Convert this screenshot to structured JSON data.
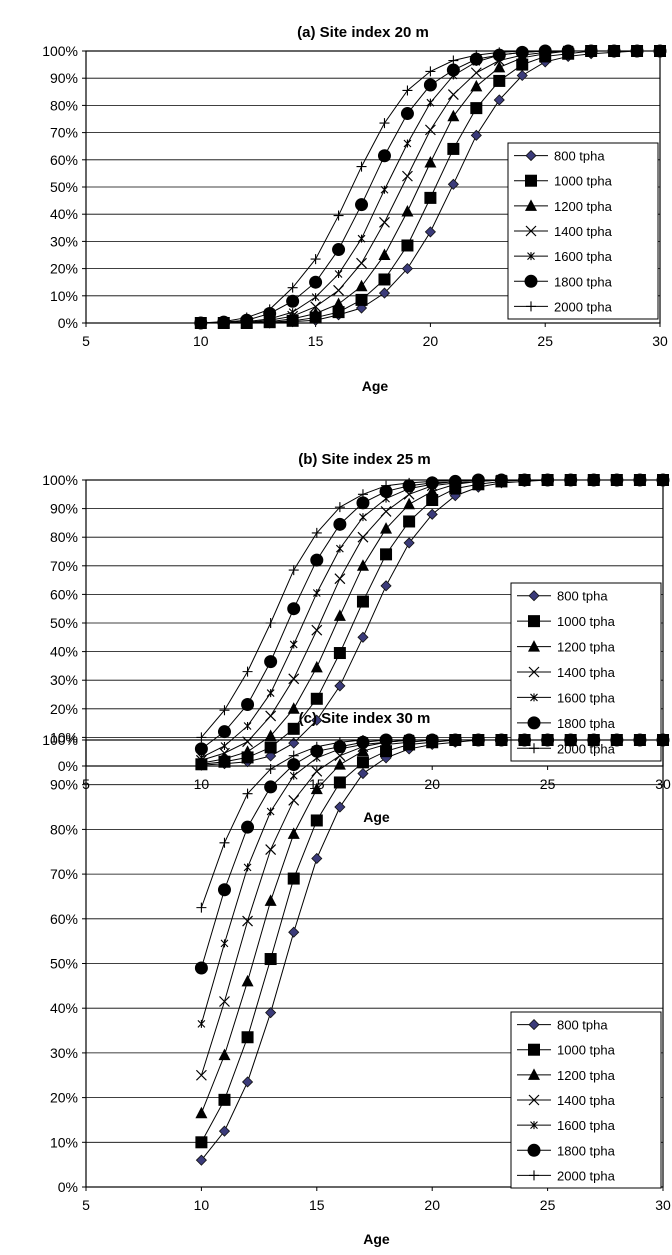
{
  "chart_data": [
    {
      "type": "line",
      "title": "(a) Site index 20 m",
      "xlabel": "Age",
      "ylabel": "",
      "xlim": [
        5,
        30
      ],
      "ylim": [
        0,
        100
      ],
      "x_ticks": [
        "5",
        "10",
        "15",
        "20",
        "25",
        "30"
      ],
      "y_ticks": [
        "0%",
        "10%",
        "20%",
        "30%",
        "40%",
        "50%",
        "60%",
        "70%",
        "80%",
        "90%",
        "100%"
      ],
      "grid": "horizontal",
      "legend_position": "right",
      "x": [
        10,
        11,
        12,
        13,
        14,
        15,
        16,
        17,
        18,
        19,
        20,
        21,
        22,
        23,
        24,
        25,
        26,
        27,
        28,
        29,
        30
      ],
      "series": [
        {
          "name": "800 tpha",
          "marker": "diamond",
          "values": [
            0,
            0,
            0,
            0,
            0.5,
            1,
            3,
            5.5,
            11,
            20,
            33.5,
            51,
            69,
            82,
            91,
            96,
            98,
            99,
            99.5,
            100,
            100
          ]
        },
        {
          "name": "1000 tpha",
          "marker": "square",
          "values": [
            0,
            0,
            0,
            0.3,
            0.8,
            2,
            4,
            8.5,
            16,
            28.5,
            46,
            64,
            79,
            89,
            95,
            98,
            99,
            100,
            100,
            100,
            100
          ]
        },
        {
          "name": "1200 tpha",
          "marker": "triangle",
          "values": [
            0,
            0,
            0.2,
            0.5,
            1.5,
            3.5,
            7,
            13.5,
            25,
            41,
            59,
            76,
            87,
            94,
            97.5,
            99,
            100,
            100,
            100,
            100,
            100
          ]
        },
        {
          "name": "1400 tpha",
          "marker": "x",
          "values": [
            0,
            0,
            0.3,
            1,
            2.5,
            6,
            12,
            22,
            37,
            54,
            71,
            84,
            92,
            96.5,
            98.5,
            99.5,
            100,
            100,
            100,
            100,
            100
          ]
        },
        {
          "name": "1600 tpha",
          "marker": "star",
          "values": [
            0,
            0.2,
            0.5,
            1.5,
            4,
            9.5,
            18,
            31,
            49,
            66,
            81,
            91,
            96,
            98.5,
            99.5,
            100,
            100,
            100,
            100,
            100,
            100
          ]
        },
        {
          "name": "1800 tpha",
          "marker": "circle",
          "values": [
            0,
            0.3,
            1,
            3.5,
            8,
            15,
            27,
            43.5,
            61.5,
            77,
            87.5,
            93,
            97,
            98.5,
            99.5,
            100,
            100,
            100,
            100,
            100,
            100
          ]
        },
        {
          "name": "2000 tpha",
          "marker": "plus",
          "values": [
            0,
            0.5,
            2,
            5,
            13,
            23.5,
            39.5,
            57.5,
            73.5,
            85.5,
            92.5,
            96.5,
            98.5,
            99.5,
            100,
            100,
            100,
            100,
            100,
            100,
            100
          ]
        }
      ]
    },
    {
      "type": "line",
      "title": "(b) Site index 25 m",
      "xlabel": "Age",
      "ylabel": "",
      "xlim": [
        5,
        30
      ],
      "ylim": [
        0,
        100
      ],
      "x_ticks": [
        "5",
        "10",
        "15",
        "20",
        "25",
        "30"
      ],
      "y_ticks": [
        "0%",
        "10%",
        "20%",
        "30%",
        "40%",
        "50%",
        "60%",
        "70%",
        "80%",
        "90%",
        "100%"
      ],
      "grid": "horizontal",
      "legend_position": "right",
      "x": [
        10,
        11,
        12,
        13,
        14,
        15,
        16,
        17,
        18,
        19,
        20,
        21,
        22,
        23,
        24,
        25,
        26,
        27,
        28,
        29,
        30
      ],
      "series": [
        {
          "name": "800 tpha",
          "marker": "diamond",
          "values": [
            0.3,
            0.8,
            1.5,
            3.5,
            8,
            16,
            28,
            45,
            63,
            78,
            88,
            94.5,
            97.5,
            99,
            99.5,
            100,
            100,
            100,
            100,
            100,
            100
          ]
        },
        {
          "name": "1000 tpha",
          "marker": "square",
          "values": [
            0.6,
            1.5,
            3,
            6.5,
            13,
            23.5,
            39.5,
            57.5,
            74,
            85.5,
            93,
            97,
            98.5,
            99.5,
            100,
            100,
            100,
            100,
            100,
            100,
            100
          ]
        },
        {
          "name": "1200 tpha",
          "marker": "triangle",
          "values": [
            1,
            2.5,
            5,
            10.5,
            20,
            34.5,
            52.5,
            70,
            83,
            91.5,
            96,
            98.5,
            99.5,
            100,
            100,
            100,
            100,
            100,
            100,
            100,
            100
          ]
        },
        {
          "name": "1400 tpha",
          "marker": "x",
          "values": [
            2,
            4.5,
            8.5,
            17.5,
            30.5,
            47.5,
            65.5,
            80,
            89,
            95,
            98,
            99,
            99.5,
            100,
            100,
            100,
            100,
            100,
            100,
            100,
            100
          ]
        },
        {
          "name": "1600 tpha",
          "marker": "star",
          "values": [
            3,
            7,
            14,
            25.5,
            42.5,
            60.5,
            76,
            87,
            93.5,
            97,
            98.5,
            99.5,
            100,
            100,
            100,
            100,
            100,
            100,
            100,
            100,
            100
          ]
        },
        {
          "name": "1800 tpha",
          "marker": "circle",
          "values": [
            6,
            12,
            21.5,
            36.5,
            55,
            72,
            84.5,
            92,
            96,
            98,
            99,
            99.5,
            100,
            100,
            100,
            100,
            100,
            100,
            100,
            100,
            100
          ]
        },
        {
          "name": "2000 tpha",
          "marker": "plus",
          "values": [
            10,
            19.5,
            33,
            50,
            68.5,
            81.5,
            90.5,
            95,
            98,
            99,
            99.5,
            100,
            100,
            100,
            100,
            100,
            100,
            100,
            100,
            100,
            100
          ]
        }
      ]
    },
    {
      "type": "line",
      "title": "(c) Site index 30 m",
      "xlabel": "Age",
      "ylabel": "",
      "xlim": [
        5,
        30
      ],
      "ylim": [
        0,
        100
      ],
      "x_ticks": [
        "5",
        "10",
        "15",
        "20",
        "25",
        "30"
      ],
      "y_ticks": [
        "0%",
        "10%",
        "20%",
        "30%",
        "40%",
        "50%",
        "60%",
        "70%",
        "80%",
        "90%",
        "100%"
      ],
      "grid": "horizontal",
      "legend_position": "right",
      "x": [
        10,
        11,
        12,
        13,
        14,
        15,
        16,
        17,
        18,
        19,
        20,
        21,
        22,
        23,
        24,
        25,
        26,
        27,
        28,
        29,
        30
      ],
      "series": [
        {
          "name": "800 tpha",
          "marker": "diamond",
          "values": [
            6,
            12.5,
            23.5,
            39,
            57,
            73.5,
            85,
            92.5,
            96,
            98,
            99,
            99.5,
            100,
            100,
            100,
            100,
            100,
            100,
            100,
            100,
            100
          ]
        },
        {
          "name": "1000 tpha",
          "marker": "square",
          "values": [
            10,
            19.5,
            33.5,
            51,
            69,
            82,
            90.5,
            95,
            97.5,
            99,
            99.5,
            100,
            100,
            100,
            100,
            100,
            100,
            100,
            100,
            100,
            100
          ]
        },
        {
          "name": "1200 tpha",
          "marker": "triangle",
          "values": [
            16.5,
            29.5,
            46,
            64,
            79,
            89,
            94.5,
            97.5,
            99,
            99.5,
            100,
            100,
            100,
            100,
            100,
            100,
            100,
            100,
            100,
            100,
            100
          ]
        },
        {
          "name": "1400 tpha",
          "marker": "x",
          "values": [
            25,
            41.5,
            59.5,
            75.5,
            86.5,
            93,
            96.5,
            98.5,
            99.5,
            100,
            100,
            100,
            100,
            100,
            100,
            100,
            100,
            100,
            100,
            100,
            100
          ]
        },
        {
          "name": "1600 tpha",
          "marker": "star",
          "values": [
            36.5,
            54.5,
            71.5,
            84,
            92,
            96,
            98,
            99,
            99.5,
            100,
            100,
            100,
            100,
            100,
            100,
            100,
            100,
            100,
            100,
            100,
            100
          ]
        },
        {
          "name": "1800 tpha",
          "marker": "circle",
          "values": [
            49,
            66.5,
            80.5,
            89.5,
            94.5,
            97.5,
            98.5,
            99.5,
            100,
            100,
            100,
            100,
            100,
            100,
            100,
            100,
            100,
            100,
            100,
            100,
            100
          ]
        },
        {
          "name": "2000 tpha",
          "marker": "plus",
          "values": [
            62.5,
            77,
            88,
            93.5,
            96.5,
            98.5,
            99.5,
            100,
            100,
            100,
            100,
            100,
            100,
            100,
            100,
            100,
            100,
            100,
            100,
            100,
            100
          ]
        }
      ]
    }
  ]
}
